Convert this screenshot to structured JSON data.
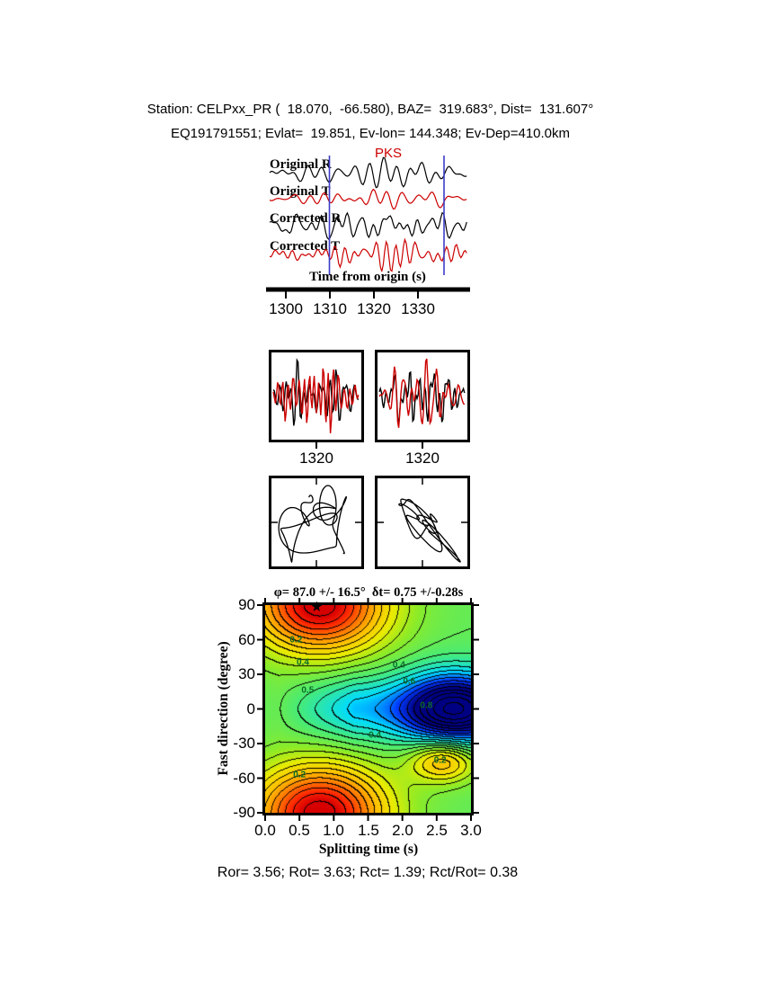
{
  "header": {
    "line1": "Station: CELPxx_PR (  18.070,  -66.580), BAZ=  319.683°, Dist=  131.607°",
    "line2": "EQ191791551; Evlat=  19.851, Ev-lon= 144.348; Ev-Dep=410.0km"
  },
  "chart_data": [
    {
      "type": "line",
      "panel": "seismogram-waveforms",
      "series": [
        {
          "name": "Original R",
          "color": "#000000"
        },
        {
          "name": "Original T",
          "color": "#cc0000"
        },
        {
          "name": "Corrected R",
          "color": "#000000"
        },
        {
          "name": "Corrected T",
          "color": "#cc0000"
        }
      ],
      "xlabel": "Time from origin (s)",
      "x_ticks": [
        1300,
        1310,
        1320,
        1330
      ],
      "x_range": [
        1295.5,
        1341.8
      ],
      "phase_label": "PKS",
      "window_s": [
        1310,
        1336
      ],
      "zoom_window_tick": 1320
    },
    {
      "type": "heatmap",
      "title": "φ= 87.0 +/- 16.5°  δt= 0.75 +/-0.28s",
      "xlabel": "Splitting time (s)",
      "ylabel": "Fast direction (degree)",
      "x_range": [
        0,
        3
      ],
      "y_range": [
        -90,
        90
      ],
      "x_ticks": [
        0,
        0.5,
        1,
        1.5,
        2,
        2.5,
        3
      ],
      "x_tick_labels": [
        "0.0",
        "0.5",
        "1.0",
        "1.5",
        "2.0",
        "2.5",
        "3.0"
      ],
      "y_ticks": [
        90,
        60,
        30,
        0,
        -30,
        -60,
        -90
      ],
      "y_tick_labels": [
        "90",
        "60",
        "30",
        "0",
        "-30",
        "-60",
        "-90"
      ],
      "best_fit": {
        "phi_deg": 87.0,
        "phi_err_deg": 16.5,
        "dt_s": 0.75,
        "dt_err_s": 0.28
      },
      "star": {
        "dt_s": 0.75,
        "phi_deg": 87,
        "glyph": "★"
      },
      "labeled_contours": [
        0.2,
        0.4,
        0.5,
        0.6,
        0.8
      ],
      "contour_labels": [
        {
          "text": "0.2",
          "dt": 0.45,
          "phi": 60
        },
        {
          "text": "0.4",
          "dt": 0.55,
          "phi": 40
        },
        {
          "text": "0.5",
          "dt": 0.62,
          "phi": 16
        },
        {
          "text": "0.4",
          "dt": 1.95,
          "phi": 38
        },
        {
          "text": "0.6",
          "dt": 2.1,
          "phi": 24
        },
        {
          "text": "0.8",
          "dt": 2.35,
          "phi": 3
        },
        {
          "text": "0.4",
          "dt": 1.6,
          "phi": -23
        },
        {
          "text": "0.2",
          "dt": 2.55,
          "phi": -45
        },
        {
          "text": "0.2",
          "dt": 0.5,
          "phi": -57
        }
      ],
      "colormap": "rainbow",
      "grid": "off",
      "legend_position": "none"
    }
  ],
  "footer": {
    "stats": "Ror= 3.56; Rot= 3.63; Rct= 1.39; Rct/Rot= 0.38"
  }
}
